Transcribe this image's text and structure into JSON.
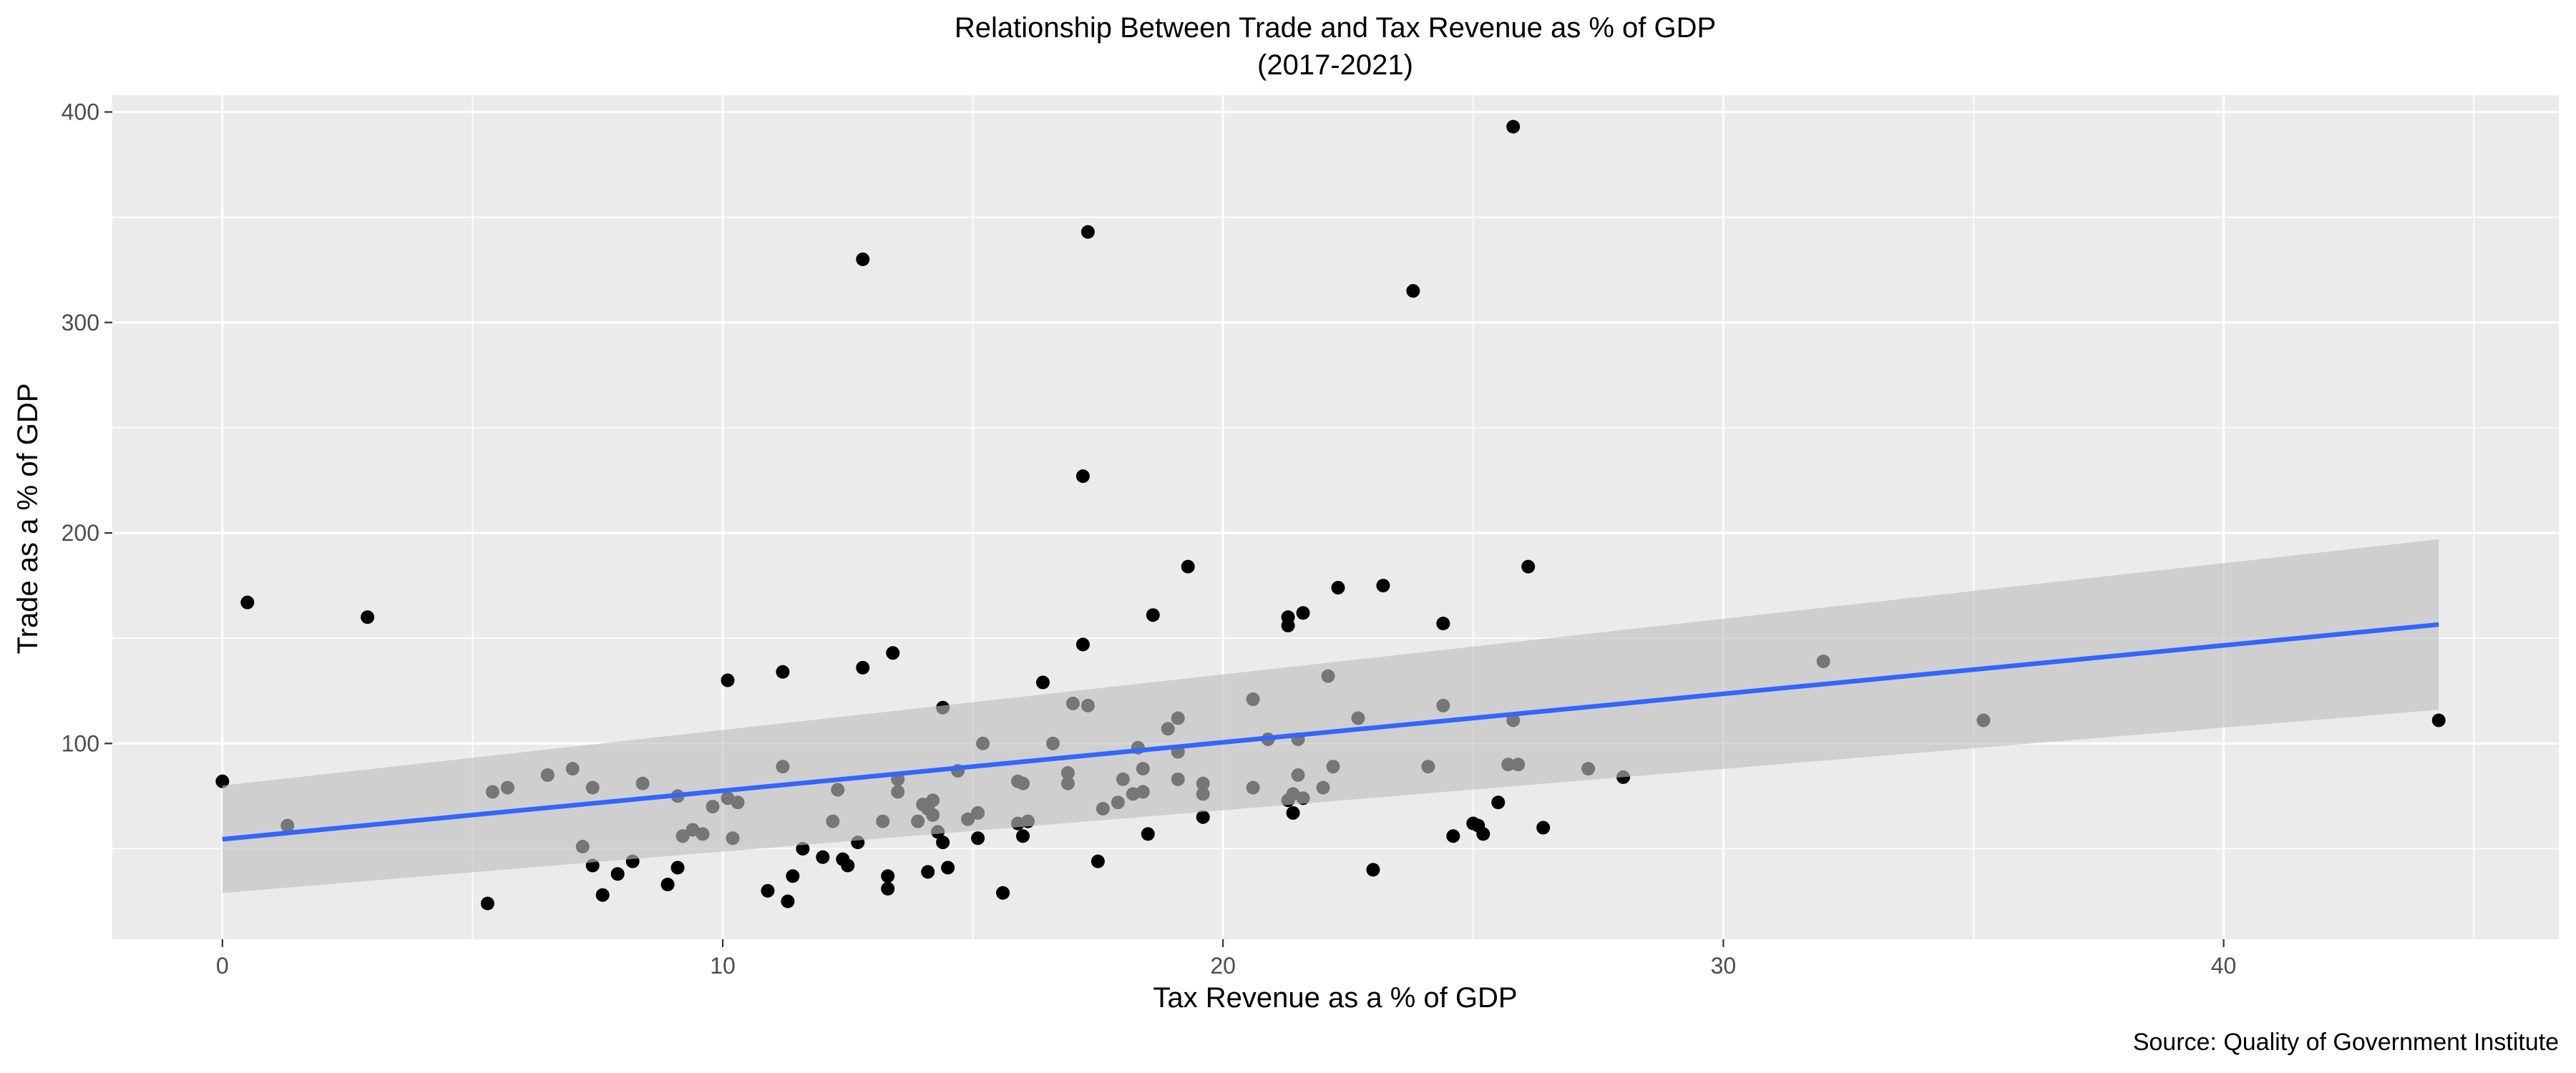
{
  "chart_data": {
    "type": "scatter",
    "title": "Relationship Between Trade and Tax Revenue as % of GDP",
    "subtitle": "(2017-2021)",
    "xlabel": "Tax Revenue as a % of GDP",
    "ylabel": "Trade as a % of GDP",
    "caption": "Source: Quality of Government Institute",
    "xlim": [
      -2.2,
      46.7
    ],
    "ylim": [
      7,
      408
    ],
    "x_ticks": [
      0,
      10,
      20,
      30,
      40
    ],
    "x_tick_labels": [
      "0",
      "10",
      "20",
      "30",
      "40"
    ],
    "y_ticks": [
      100,
      200,
      300,
      400
    ],
    "y_tick_labels": [
      "100",
      "200",
      "300",
      "400"
    ],
    "grid": true,
    "colors": {
      "panel": "#EBEBEB",
      "grid": "#FFFFFF",
      "points": "#000000",
      "fit_line": "#3366FF",
      "ribbon": "#BEBEBE",
      "text": "#000000",
      "tick_text": "#4D4D4D",
      "tick_mark": "#333333"
    },
    "points": [
      [
        0.0,
        82
      ],
      [
        0.5,
        167
      ],
      [
        1.3,
        61
      ],
      [
        2.9,
        160
      ],
      [
        5.3,
        24
      ],
      [
        5.4,
        77
      ],
      [
        5.7,
        79
      ],
      [
        6.5,
        85
      ],
      [
        7.0,
        88
      ],
      [
        7.2,
        51
      ],
      [
        7.4,
        79
      ],
      [
        7.4,
        42
      ],
      [
        7.6,
        28
      ],
      [
        7.9,
        38
      ],
      [
        8.2,
        44
      ],
      [
        8.4,
        81
      ],
      [
        8.9,
        33
      ],
      [
        9.1,
        41
      ],
      [
        9.1,
        75
      ],
      [
        9.2,
        56
      ],
      [
        9.4,
        59
      ],
      [
        9.6,
        57
      ],
      [
        9.8,
        70
      ],
      [
        10.1,
        130
      ],
      [
        10.1,
        74
      ],
      [
        10.2,
        55
      ],
      [
        10.3,
        72
      ],
      [
        10.9,
        30
      ],
      [
        11.2,
        134
      ],
      [
        11.2,
        89
      ],
      [
        11.3,
        25
      ],
      [
        11.4,
        37
      ],
      [
        11.6,
        50
      ],
      [
        12.0,
        46
      ],
      [
        12.2,
        63
      ],
      [
        12.3,
        78
      ],
      [
        12.4,
        45
      ],
      [
        12.5,
        42
      ],
      [
        12.7,
        53
      ],
      [
        12.8,
        330
      ],
      [
        12.8,
        136
      ],
      [
        13.2,
        63
      ],
      [
        13.3,
        37
      ],
      [
        13.3,
        31
      ],
      [
        13.4,
        143
      ],
      [
        13.5,
        77
      ],
      [
        13.5,
        83
      ],
      [
        13.9,
        63
      ],
      [
        14.0,
        71
      ],
      [
        14.1,
        69
      ],
      [
        14.1,
        39
      ],
      [
        14.2,
        73
      ],
      [
        14.2,
        66
      ],
      [
        14.3,
        58
      ],
      [
        14.4,
        117
      ],
      [
        14.4,
        53
      ],
      [
        14.5,
        41
      ],
      [
        14.7,
        87
      ],
      [
        14.9,
        64
      ],
      [
        15.1,
        67
      ],
      [
        15.1,
        55
      ],
      [
        15.2,
        100
      ],
      [
        15.6,
        29
      ],
      [
        15.9,
        82
      ],
      [
        15.9,
        62
      ],
      [
        16.0,
        81
      ],
      [
        16.0,
        56
      ],
      [
        16.1,
        63
      ],
      [
        16.4,
        129
      ],
      [
        16.6,
        100
      ],
      [
        16.9,
        86
      ],
      [
        16.9,
        81
      ],
      [
        17.0,
        119
      ],
      [
        17.2,
        227
      ],
      [
        17.2,
        147
      ],
      [
        17.3,
        118
      ],
      [
        17.3,
        343
      ],
      [
        17.5,
        44
      ],
      [
        17.6,
        69
      ],
      [
        17.9,
        72
      ],
      [
        18.0,
        83
      ],
      [
        18.2,
        76
      ],
      [
        18.3,
        98
      ],
      [
        18.4,
        88
      ],
      [
        18.4,
        77
      ],
      [
        18.5,
        57
      ],
      [
        18.6,
        161
      ],
      [
        18.9,
        107
      ],
      [
        19.1,
        112
      ],
      [
        19.1,
        96
      ],
      [
        19.1,
        83
      ],
      [
        19.3,
        184
      ],
      [
        19.6,
        65
      ],
      [
        19.6,
        81
      ],
      [
        19.6,
        76
      ],
      [
        20.6,
        121
      ],
      [
        20.6,
        79
      ],
      [
        20.9,
        102
      ],
      [
        21.3,
        160
      ],
      [
        21.3,
        156
      ],
      [
        21.3,
        73
      ],
      [
        21.4,
        76
      ],
      [
        21.4,
        67
      ],
      [
        21.5,
        102
      ],
      [
        21.5,
        85
      ],
      [
        21.6,
        162
      ],
      [
        21.6,
        74
      ],
      [
        22.0,
        79
      ],
      [
        22.1,
        132
      ],
      [
        22.2,
        89
      ],
      [
        22.3,
        174
      ],
      [
        22.7,
        112
      ],
      [
        23.0,
        40
      ],
      [
        23.2,
        175
      ],
      [
        23.8,
        315
      ],
      [
        24.1,
        89
      ],
      [
        24.4,
        157
      ],
      [
        24.4,
        118
      ],
      [
        24.6,
        56
      ],
      [
        25.0,
        62
      ],
      [
        25.1,
        61
      ],
      [
        25.2,
        57
      ],
      [
        25.5,
        72
      ],
      [
        25.7,
        90
      ],
      [
        25.8,
        111
      ],
      [
        25.8,
        393
      ],
      [
        25.9,
        90
      ],
      [
        26.1,
        184
      ],
      [
        26.4,
        60
      ],
      [
        27.3,
        88
      ],
      [
        28.0,
        84
      ],
      [
        32.0,
        139
      ],
      [
        35.2,
        111
      ],
      [
        44.3,
        111
      ]
    ],
    "fit": {
      "method": "linear",
      "x": [
        0.0,
        44.3
      ],
      "y": [
        54.5,
        156.5
      ],
      "se_lower": [
        29.0,
        116.0
      ],
      "se_upper": [
        80.0,
        197.0
      ]
    }
  }
}
